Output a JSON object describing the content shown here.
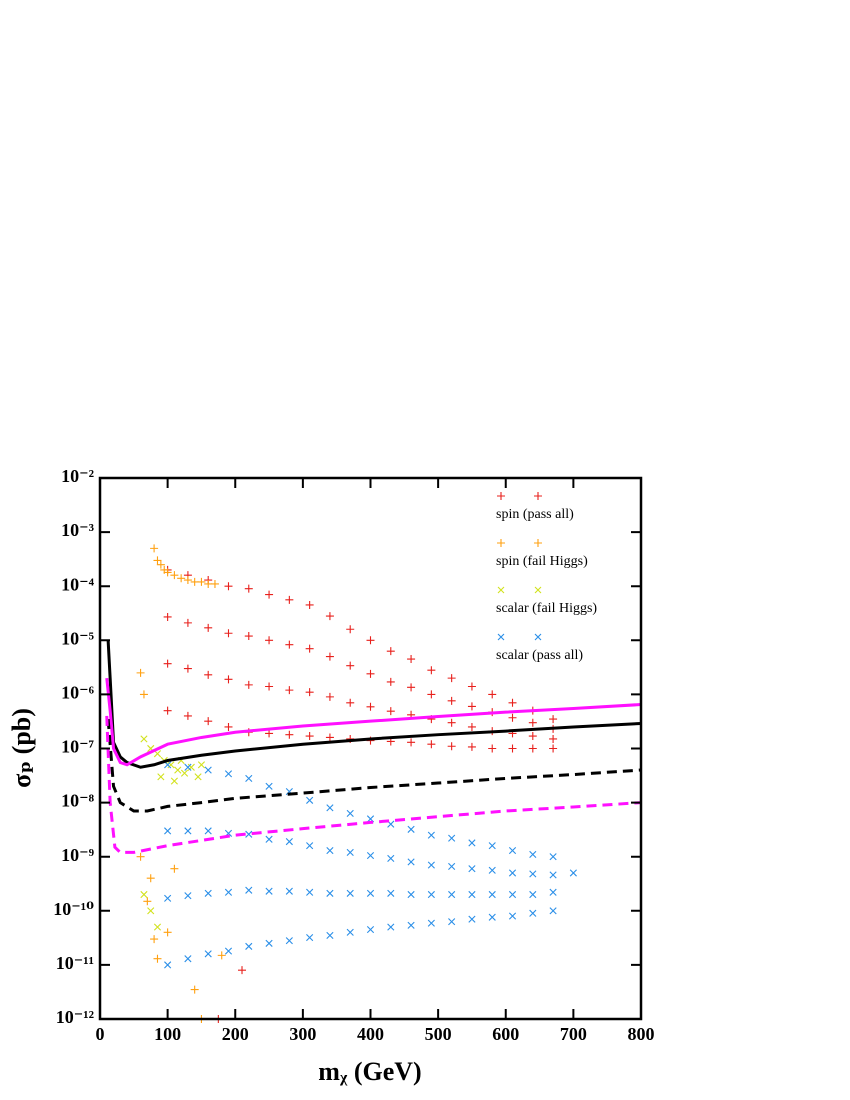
{
  "chart_data": {
    "type": "scatter",
    "xlabel": "mᵪ (GeV)",
    "ylabel": "σₚ (pb)",
    "xlim": [
      0,
      800
    ],
    "ylim": [
      1e-12,
      0.01
    ],
    "log_y": true,
    "xticks": [
      0,
      100,
      200,
      300,
      400,
      500,
      600,
      700,
      800
    ],
    "yticks": [
      {
        "value": 1e-12,
        "label": "10⁻¹²"
      },
      {
        "value": 1e-11,
        "label": "10⁻¹¹"
      },
      {
        "value": 1e-10,
        "label": "10⁻¹⁰"
      },
      {
        "value": 1e-09,
        "label": "10⁻⁹"
      },
      {
        "value": 1e-08,
        "label": "10⁻⁸"
      },
      {
        "value": 1e-07,
        "label": "10⁻⁷"
      },
      {
        "value": 1e-06,
        "label": "10⁻⁶"
      },
      {
        "value": 1e-05,
        "label": "10⁻⁵"
      },
      {
        "value": 0.0001,
        "label": "10⁻⁴"
      },
      {
        "value": 0.001,
        "label": "10⁻³"
      },
      {
        "value": 0.01,
        "label": "10⁻²"
      }
    ],
    "legend": "upper right",
    "series": [
      {
        "name": "spin (pass all)",
        "marker": "plus",
        "color": "#e8201c",
        "x": [
          100,
          100,
          100,
          100,
          130,
          130,
          130,
          130,
          160,
          160,
          160,
          160,
          190,
          190,
          190,
          190,
          220,
          220,
          220,
          220,
          250,
          250,
          250,
          250,
          280,
          280,
          280,
          280,
          310,
          310,
          310,
          310,
          340,
          340,
          340,
          340,
          370,
          370,
          370,
          370,
          400,
          400,
          400,
          400,
          430,
          430,
          430,
          430,
          460,
          460,
          460,
          460,
          490,
          490,
          490,
          490,
          520,
          520,
          520,
          520,
          550,
          550,
          550,
          550,
          580,
          580,
          580,
          580,
          610,
          610,
          610,
          610,
          640,
          640,
          640,
          640,
          670,
          670,
          670,
          670,
          210,
          175
        ],
        "values": [
          0.0002,
          2.7e-05,
          3.7e-06,
          5e-07,
          0.00016,
          2.1e-05,
          3e-06,
          4e-07,
          0.00013,
          1.7e-05,
          2.3e-06,
          3.2e-07,
          0.0001,
          1.35e-05,
          1.9e-06,
          2.5e-07,
          9e-05,
          1.2e-05,
          1.5e-06,
          2e-07,
          7e-05,
          1e-05,
          1.4e-06,
          1.9e-07,
          5.6e-05,
          8.3e-06,
          1.2e-06,
          1.8e-07,
          4.5e-05,
          7e-06,
          1.1e-06,
          1.7e-07,
          2.8e-05,
          5e-06,
          9e-07,
          1.6e-07,
          1.6e-05,
          3.4e-06,
          7e-07,
          1.5e-07,
          1e-05,
          2.4e-06,
          5.9e-07,
          1.4e-07,
          6.3e-06,
          1.7e-06,
          4.9e-07,
          1.35e-07,
          4.5e-06,
          1.35e-06,
          4.2e-07,
          1.3e-07,
          2.8e-06,
          1e-06,
          3.5e-07,
          1.2e-07,
          2e-06,
          7.6e-07,
          3e-07,
          1.1e-07,
          1.4e-06,
          6e-07,
          2.5e-07,
          1.07e-07,
          1e-06,
          4.7e-07,
          2.1e-07,
          1e-07,
          7e-07,
          3.7e-07,
          1.9e-07,
          1e-07,
          5e-07,
          3e-07,
          1.7e-07,
          1e-07,
          3.5e-07,
          2.3e-07,
          1.5e-07,
          1e-07,
          8e-12,
          1e-12
        ]
      },
      {
        "name": "spin (fail Higgs)",
        "marker": "plus",
        "color": "#ffa010",
        "x": [
          80,
          85,
          90,
          95,
          100,
          110,
          120,
          130,
          140,
          150,
          160,
          170,
          60,
          65,
          60,
          75,
          70,
          80,
          85,
          140,
          150,
          180,
          100,
          110
        ],
        "values": [
          0.0005,
          0.0003,
          0.00025,
          0.0002,
          0.00018,
          0.00016,
          0.00014,
          0.00013,
          0.00012,
          0.00012,
          0.00011,
          0.00011,
          2.5e-06,
          1e-06,
          1e-09,
          4e-10,
          1.5e-10,
          3e-11,
          1.3e-11,
          3.5e-12,
          1e-12,
          1.5e-11,
          4e-11,
          6e-10
        ]
      },
      {
        "name": "scalar (fail Higgs)",
        "marker": "cross",
        "color": "#d2e21e",
        "x": [
          65,
          75,
          85,
          95,
          105,
          115,
          125,
          135,
          145,
          110,
          90,
          120,
          65,
          75,
          85,
          150
        ],
        "values": [
          1.5e-07,
          1e-07,
          8e-08,
          6e-08,
          5e-08,
          4e-08,
          3.5e-08,
          4.5e-08,
          3e-08,
          2.5e-08,
          3e-08,
          6e-08,
          2e-10,
          1e-10,
          5e-11,
          5e-08
        ]
      },
      {
        "name": "scalar (pass all)",
        "marker": "cross",
        "color": "#2b8fe8",
        "x": [
          100,
          100,
          100,
          100,
          130,
          130,
          130,
          130,
          160,
          160,
          160,
          160,
          190,
          190,
          190,
          190,
          220,
          220,
          220,
          220,
          250,
          250,
          250,
          250,
          280,
          280,
          280,
          280,
          310,
          310,
          310,
          310,
          340,
          340,
          340,
          340,
          370,
          370,
          370,
          370,
          400,
          400,
          400,
          400,
          430,
          430,
          430,
          430,
          460,
          460,
          460,
          460,
          490,
          490,
          490,
          490,
          520,
          520,
          520,
          520,
          550,
          550,
          550,
          550,
          580,
          580,
          580,
          580,
          610,
          610,
          610,
          610,
          640,
          640,
          640,
          640,
          670,
          670,
          670,
          670,
          700
        ],
        "values": [
          5e-08,
          3e-09,
          1.7e-10,
          1e-11,
          4.5e-08,
          3e-09,
          1.9e-10,
          1.3e-11,
          4e-08,
          3e-09,
          2.1e-10,
          1.6e-11,
          3.4e-08,
          2.7e-09,
          2.2e-10,
          1.8e-11,
          2.8e-08,
          2.6e-09,
          2.4e-10,
          2.2e-11,
          2e-08,
          2.1e-09,
          2.3e-10,
          2.5e-11,
          1.6e-08,
          1.9e-09,
          2.3e-10,
          2.8e-11,
          1.1e-08,
          1.6e-09,
          2.2e-10,
          3.2e-11,
          8e-09,
          1.3e-09,
          2.1e-10,
          3.5e-11,
          6.3e-09,
          1.2e-09,
          2.1e-10,
          4e-11,
          5e-09,
          1.05e-09,
          2.1e-10,
          4.5e-11,
          4e-09,
          9.3e-10,
          2.1e-10,
          5e-11,
          3.2e-09,
          8e-10,
          2e-10,
          5.4e-11,
          2.5e-09,
          7e-10,
          2e-10,
          5.9e-11,
          2.2e-09,
          6.6e-10,
          2e-10,
          6.3e-11,
          1.8e-09,
          6e-10,
          2e-10,
          7e-11,
          1.6e-09,
          5.6e-10,
          2e-10,
          7.6e-11,
          1.3e-09,
          5e-10,
          2e-10,
          8e-11,
          1.1e-09,
          4.8e-10,
          2e-10,
          9e-11,
          1e-09,
          4.6e-10,
          2.2e-10,
          1e-10,
          5e-10
        ]
      }
    ],
    "curves": [
      {
        "color": "#000000",
        "dash": false,
        "x": [
          12,
          15,
          20,
          30,
          40,
          60,
          80,
          100,
          150,
          200,
          300,
          400,
          500,
          600,
          700,
          800
        ],
        "values": [
          1e-05,
          2e-06,
          1.3e-07,
          7e-08,
          5.5e-08,
          4.5e-08,
          5e-08,
          6e-08,
          7.5e-08,
          9e-08,
          1.2e-07,
          1.5e-07,
          1.8e-07,
          2.1e-07,
          2.5e-07,
          2.9e-07
        ]
      },
      {
        "color": "#ff10ff",
        "dash": false,
        "x": [
          10,
          15,
          20,
          30,
          40,
          60,
          100,
          150,
          200,
          300,
          400,
          500,
          600,
          700,
          800
        ],
        "values": [
          2e-06,
          5e-07,
          1e-07,
          5.5e-08,
          5e-08,
          7e-08,
          1.2e-07,
          1.6e-07,
          2e-07,
          2.6e-07,
          3.2e-07,
          3.9e-07,
          4.7e-07,
          5.5e-07,
          6.5e-07
        ]
      },
      {
        "color": "#000000",
        "dash": true,
        "x": [
          12,
          20,
          30,
          50,
          70,
          100,
          150,
          200,
          300,
          400,
          500,
          600,
          700,
          800
        ],
        "values": [
          3.5e-07,
          2e-08,
          1e-08,
          7e-09,
          7e-09,
          8.5e-09,
          1e-08,
          1.2e-08,
          1.5e-08,
          1.9e-08,
          2.3e-08,
          2.8e-08,
          3.3e-08,
          4e-08
        ]
      },
      {
        "color": "#ff10ff",
        "dash": true,
        "x": [
          10,
          15,
          22,
          30,
          50,
          100,
          150,
          200,
          300,
          400,
          500,
          600,
          700,
          800
        ],
        "values": [
          4e-07,
          1e-08,
          1.5e-09,
          1.2e-09,
          1.2e-09,
          1.6e-09,
          2e-09,
          2.5e-09,
          3.3e-09,
          4.3e-09,
          5.5e-09,
          7e-09,
          8.3e-09,
          1e-08
        ]
      }
    ]
  }
}
